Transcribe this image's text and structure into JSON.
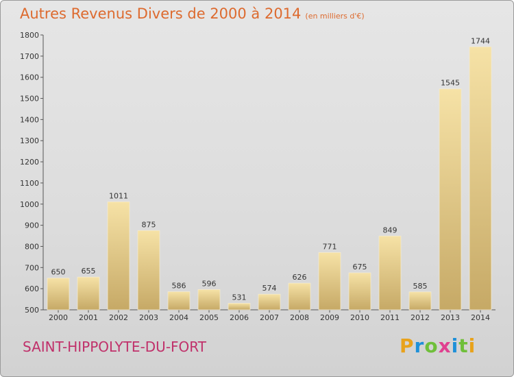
{
  "header": {
    "title": "Autres Revenus Divers de 2000 à 2014",
    "unit": "(en milliers d'€)"
  },
  "footer": {
    "place": "SAINT-HIPPOLYTE-DU-FORT",
    "logo_letters": [
      "P",
      "r",
      "o",
      "x",
      "i",
      "t",
      "i"
    ]
  },
  "colors": {
    "title": "#dd6a2e",
    "place": "#c0306a",
    "bar_light": "#f5dfa0",
    "bar_dark": "#c9ad6a",
    "background": "#e0e0e0"
  },
  "chart_data": {
    "type": "bar",
    "categories": [
      "2000",
      "2001",
      "2002",
      "2003",
      "2004",
      "2005",
      "2006",
      "2007",
      "2008",
      "2009",
      "2010",
      "2011",
      "2012",
      "2013",
      "2014"
    ],
    "values": [
      650,
      655,
      1011,
      875,
      586,
      596,
      531,
      574,
      626,
      771,
      675,
      849,
      585,
      1545,
      1744
    ],
    "ylim": [
      500,
      1800
    ],
    "yticks": [
      500,
      600,
      700,
      800,
      900,
      1000,
      1100,
      1200,
      1300,
      1400,
      1500,
      1600,
      1700,
      1800
    ],
    "grid": false,
    "data_labels": true
  }
}
